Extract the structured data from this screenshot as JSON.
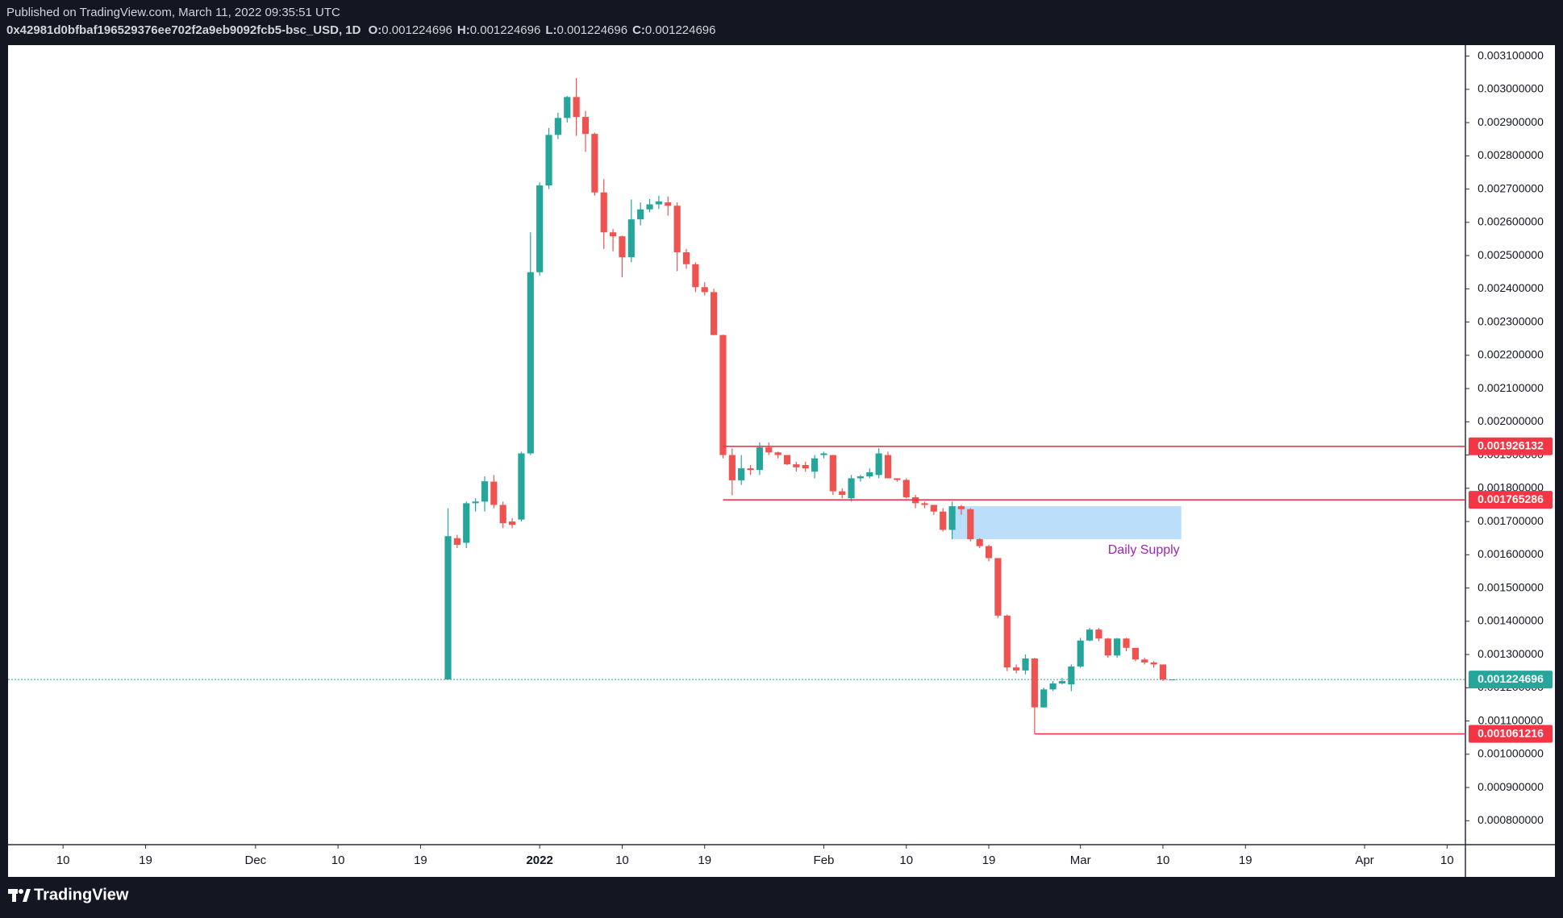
{
  "header": {
    "published": "Published on TradingView.com, March 11, 2022 09:35:51 UTC",
    "symbol": "0x42981d0bfbaf196529376ee702f2a9eb9092fcb5-bsc_USD, 1D",
    "ohlc": [
      {
        "label": "O:",
        "value": 0.001224696
      },
      {
        "label": "H:",
        "value": 0.001224696
      },
      {
        "label": "L:",
        "value": 0.001224696
      },
      {
        "label": "C:",
        "value": 0.001224696
      }
    ]
  },
  "chart_data": {
    "type": "candlestick",
    "up_color": "#26a69a",
    "down_color": "#ef5350",
    "x": [
      "2021-12-22",
      "2021-12-23",
      "2021-12-24",
      "2021-12-25",
      "2021-12-26",
      "2021-12-27",
      "2021-12-28",
      "2021-12-29",
      "2021-12-30",
      "2021-12-31",
      "2022-01-01",
      "2022-01-02",
      "2022-01-03",
      "2022-01-04",
      "2022-01-05",
      "2022-01-06",
      "2022-01-07",
      "2022-01-08",
      "2022-01-09",
      "2022-01-10",
      "2022-01-11",
      "2022-01-12",
      "2022-01-13",
      "2022-01-14",
      "2022-01-15",
      "2022-01-16",
      "2022-01-17",
      "2022-01-18",
      "2022-01-19",
      "2022-01-20",
      "2022-01-21",
      "2022-01-22",
      "2022-01-23",
      "2022-01-24",
      "2022-01-25",
      "2022-01-26",
      "2022-01-27",
      "2022-01-28",
      "2022-01-29",
      "2022-01-30",
      "2022-01-31",
      "2022-02-01",
      "2022-02-02",
      "2022-02-03",
      "2022-02-04",
      "2022-02-05",
      "2022-02-06",
      "2022-02-07",
      "2022-02-08",
      "2022-02-09",
      "2022-02-10",
      "2022-02-11",
      "2022-02-12",
      "2022-02-13",
      "2022-02-14",
      "2022-02-15",
      "2022-02-16",
      "2022-02-17",
      "2022-02-18",
      "2022-02-19",
      "2022-02-20",
      "2022-02-21",
      "2022-02-22",
      "2022-02-23",
      "2022-02-24",
      "2022-02-25",
      "2022-02-26",
      "2022-02-27",
      "2022-02-28",
      "2022-03-01",
      "2022-03-02",
      "2022-03-03",
      "2022-03-04",
      "2022-03-05",
      "2022-03-06",
      "2022-03-07",
      "2022-03-08",
      "2022-03-09",
      "2022-03-10",
      "2022-03-11"
    ],
    "open": [
      0.001225,
      0.00165,
      0.001636,
      0.001755,
      0.00176,
      0.00182,
      0.00175,
      0.0017,
      0.001706,
      0.001905,
      0.00245,
      0.002711,
      0.002863,
      0.002914,
      0.002977,
      0.002917,
      0.002866,
      0.00269,
      0.00257,
      0.002558,
      0.002495,
      0.002609,
      0.002639,
      0.002654,
      0.00266,
      0.00265,
      0.00251,
      0.002474,
      0.002405,
      0.00239,
      0.002261,
      0.0019,
      0.001824,
      0.00186,
      0.001855,
      0.001923,
      0.001908,
      0.0019,
      0.001872,
      0.00187,
      0.00185,
      0.0019,
      0.0019,
      0.001791,
      0.00177,
      0.00183,
      0.001836,
      0.00184,
      0.0019,
      0.00183,
      0.001825,
      0.001773,
      0.001755,
      0.00175,
      0.00173,
      0.001675,
      0.001746,
      0.001737,
      0.001647,
      0.001626,
      0.00159,
      0.001417,
      0.001261,
      0.001252,
      0.001288,
      0.001141,
      0.001195,
      0.001213,
      0.00121,
      0.001264,
      0.001342,
      0.001375,
      0.001348,
      0.001297,
      0.001348,
      0.00132,
      0.001285,
      0.001276,
      0.00127,
      0.001224696
    ],
    "high": [
      0.00174,
      0.00166,
      0.00176,
      0.00177,
      0.001836,
      0.00184,
      0.00176,
      0.00171,
      0.00191,
      0.00257,
      0.00272,
      0.002884,
      0.00293,
      0.00298,
      0.003034,
      0.002935,
      0.00287,
      0.00273,
      0.00258,
      0.00256,
      0.002669,
      0.00266,
      0.00267,
      0.00268,
      0.002678,
      0.00266,
      0.00252,
      0.00248,
      0.00242,
      0.0024,
      0.002262,
      0.00192,
      0.0019,
      0.00187,
      0.001938,
      0.001938,
      0.00191,
      0.0019,
      0.00188,
      0.00188,
      0.0019,
      0.00191,
      0.0019,
      0.0018,
      0.00184,
      0.00184,
      0.00186,
      0.00192,
      0.00191,
      0.00183,
      0.00183,
      0.00178,
      0.00176,
      0.00175,
      0.00174,
      0.00176,
      0.00175,
      0.00174,
      0.00165,
      0.00163,
      0.00159,
      0.00142,
      0.00127,
      0.0013,
      0.00129,
      0.0012,
      0.00122,
      0.00123,
      0.00127,
      0.00135,
      0.00138,
      0.00138,
      0.00135,
      0.00135,
      0.00135,
      0.00132,
      0.00129,
      0.00128,
      0.00127,
      0.001224696
    ],
    "low": [
      0.001224,
      0.00162,
      0.00162,
      0.00173,
      0.00173,
      0.00174,
      0.00168,
      0.00168,
      0.0017,
      0.0019,
      0.00244,
      0.0027,
      0.00285,
      0.0029,
      0.00286,
      0.002812,
      0.00268,
      0.00252,
      0.002513,
      0.002435,
      0.00248,
      0.002591,
      0.00263,
      0.00264,
      0.00262,
      0.002453,
      0.00246,
      0.00239,
      0.00238,
      0.00226,
      0.00189,
      0.001779,
      0.00181,
      0.00184,
      0.00184,
      0.0019,
      0.00189,
      0.00187,
      0.00185,
      0.00185,
      0.00183,
      0.00189,
      0.00178,
      0.00177,
      0.00176,
      0.00182,
      0.00183,
      0.00183,
      0.00183,
      0.00182,
      0.00177,
      0.00174,
      0.00174,
      0.00172,
      0.00167,
      0.001647,
      0.00172,
      0.00164,
      0.00162,
      0.00158,
      0.00141,
      0.00125,
      0.001243,
      0.00124,
      0.001061216,
      0.00114,
      0.00119,
      0.00121,
      0.00119,
      0.00126,
      0.00134,
      0.00134,
      0.00129,
      0.00129,
      0.00131,
      0.00128,
      0.00127,
      0.00126,
      0.00122,
      0.001224696
    ],
    "close": [
      0.001656,
      0.00163,
      0.001755,
      0.00176,
      0.001821,
      0.00175,
      0.001695,
      0.00169,
      0.001905,
      0.00245,
      0.002711,
      0.002863,
      0.002914,
      0.002977,
      0.002917,
      0.002866,
      0.00269,
      0.00257,
      0.002558,
      0.002495,
      0.002609,
      0.002639,
      0.002654,
      0.002663,
      0.00265,
      0.00251,
      0.002474,
      0.002405,
      0.00239,
      0.002261,
      0.0019,
      0.001824,
      0.00186,
      0.001855,
      0.001923,
      0.001908,
      0.0019,
      0.001872,
      0.001863,
      0.00186,
      0.00189,
      0.001905,
      0.001791,
      0.00178,
      0.00183,
      0.001836,
      0.001848,
      0.001905,
      0.00183,
      0.001825,
      0.001773,
      0.001755,
      0.00175,
      0.00173,
      0.001675,
      0.001746,
      0.001737,
      0.001647,
      0.001626,
      0.00159,
      0.001417,
      0.001261,
      0.001252,
      0.001288,
      0.001141,
      0.001195,
      0.001213,
      0.00122,
      0.001264,
      0.001342,
      0.001375,
      0.001348,
      0.001297,
      0.001348,
      0.00132,
      0.001285,
      0.001276,
      0.00127,
      0.001225,
      0.001224696
    ],
    "xlim": [
      "2021-11-04",
      "2022-04-12"
    ],
    "xticks": [
      {
        "value": "2021-11-10",
        "label": "10"
      },
      {
        "value": "2021-11-19",
        "label": "19"
      },
      {
        "value": "2021-12-01",
        "label": "Dec"
      },
      {
        "value": "2021-12-10",
        "label": "10"
      },
      {
        "value": "2021-12-19",
        "label": "19"
      },
      {
        "value": "2022-01-01",
        "label": "2022"
      },
      {
        "value": "2022-01-10",
        "label": "10"
      },
      {
        "value": "2022-01-19",
        "label": "19"
      },
      {
        "value": "2022-02-01",
        "label": "Feb"
      },
      {
        "value": "2022-02-10",
        "label": "10"
      },
      {
        "value": "2022-02-19",
        "label": "19"
      },
      {
        "value": "2022-03-01",
        "label": "Mar"
      },
      {
        "value": "2022-03-10",
        "label": "10"
      },
      {
        "value": "2022-03-19",
        "label": "19"
      },
      {
        "value": "2022-04-01",
        "label": "Apr"
      },
      {
        "value": "2022-04-10",
        "label": "10"
      }
    ],
    "ylim": [
      0.000728,
      0.003133
    ],
    "yticks": [
      {
        "value": 0.0008,
        "label": "0.000800000"
      },
      {
        "value": 0.0009,
        "label": "0.000900000"
      },
      {
        "value": 0.001,
        "label": "0.001000000"
      },
      {
        "value": 0.0011,
        "label": "0.001100000"
      },
      {
        "value": 0.0012,
        "label": "0.001200000"
      },
      {
        "value": 0.0013,
        "label": "0.001300000"
      },
      {
        "value": 0.0014,
        "label": "0.001400000"
      },
      {
        "value": 0.0015,
        "label": "0.001500000"
      },
      {
        "value": 0.0016,
        "label": "0.001600000"
      },
      {
        "value": 0.0017,
        "label": "0.001700000"
      },
      {
        "value": 0.0018,
        "label": "0.001800000"
      },
      {
        "value": 0.0019,
        "label": "0.001900000"
      },
      {
        "value": 0.002,
        "label": "0.002000000"
      },
      {
        "value": 0.0021,
        "label": "0.002100000"
      },
      {
        "value": 0.0022,
        "label": "0.002200000"
      },
      {
        "value": 0.0023,
        "label": "0.002300000"
      },
      {
        "value": 0.0024,
        "label": "0.002400000"
      },
      {
        "value": 0.0025,
        "label": "0.002500000"
      },
      {
        "value": 0.0026,
        "label": "0.002600000"
      },
      {
        "value": 0.0027,
        "label": "0.002700000"
      },
      {
        "value": 0.0028,
        "label": "0.002800000"
      },
      {
        "value": 0.0029,
        "label": "0.002900000"
      },
      {
        "value": 0.003,
        "label": "0.003000000"
      },
      {
        "value": 0.0031,
        "label": "0.003100000"
      }
    ],
    "last_price": 0.001224696,
    "last_price_color": "#26a69a",
    "levels": [
      {
        "value": 0.001926132,
        "start": "2022-01-21",
        "color": "#f23645"
      },
      {
        "value": 0.001765286,
        "start": "2022-01-21",
        "color": "#f23645"
      },
      {
        "value": 0.001061216,
        "start": "2022-02-24",
        "color": "#f23645"
      }
    ],
    "zone": {
      "label": "Daily Supply",
      "top": 0.001746,
      "bottom": 0.001647,
      "start": "2022-02-15",
      "end": "2022-03-12",
      "color": "#bbdefb",
      "label_color": "#9c27b0"
    }
  },
  "footer": {
    "brand": "TradingView"
  }
}
